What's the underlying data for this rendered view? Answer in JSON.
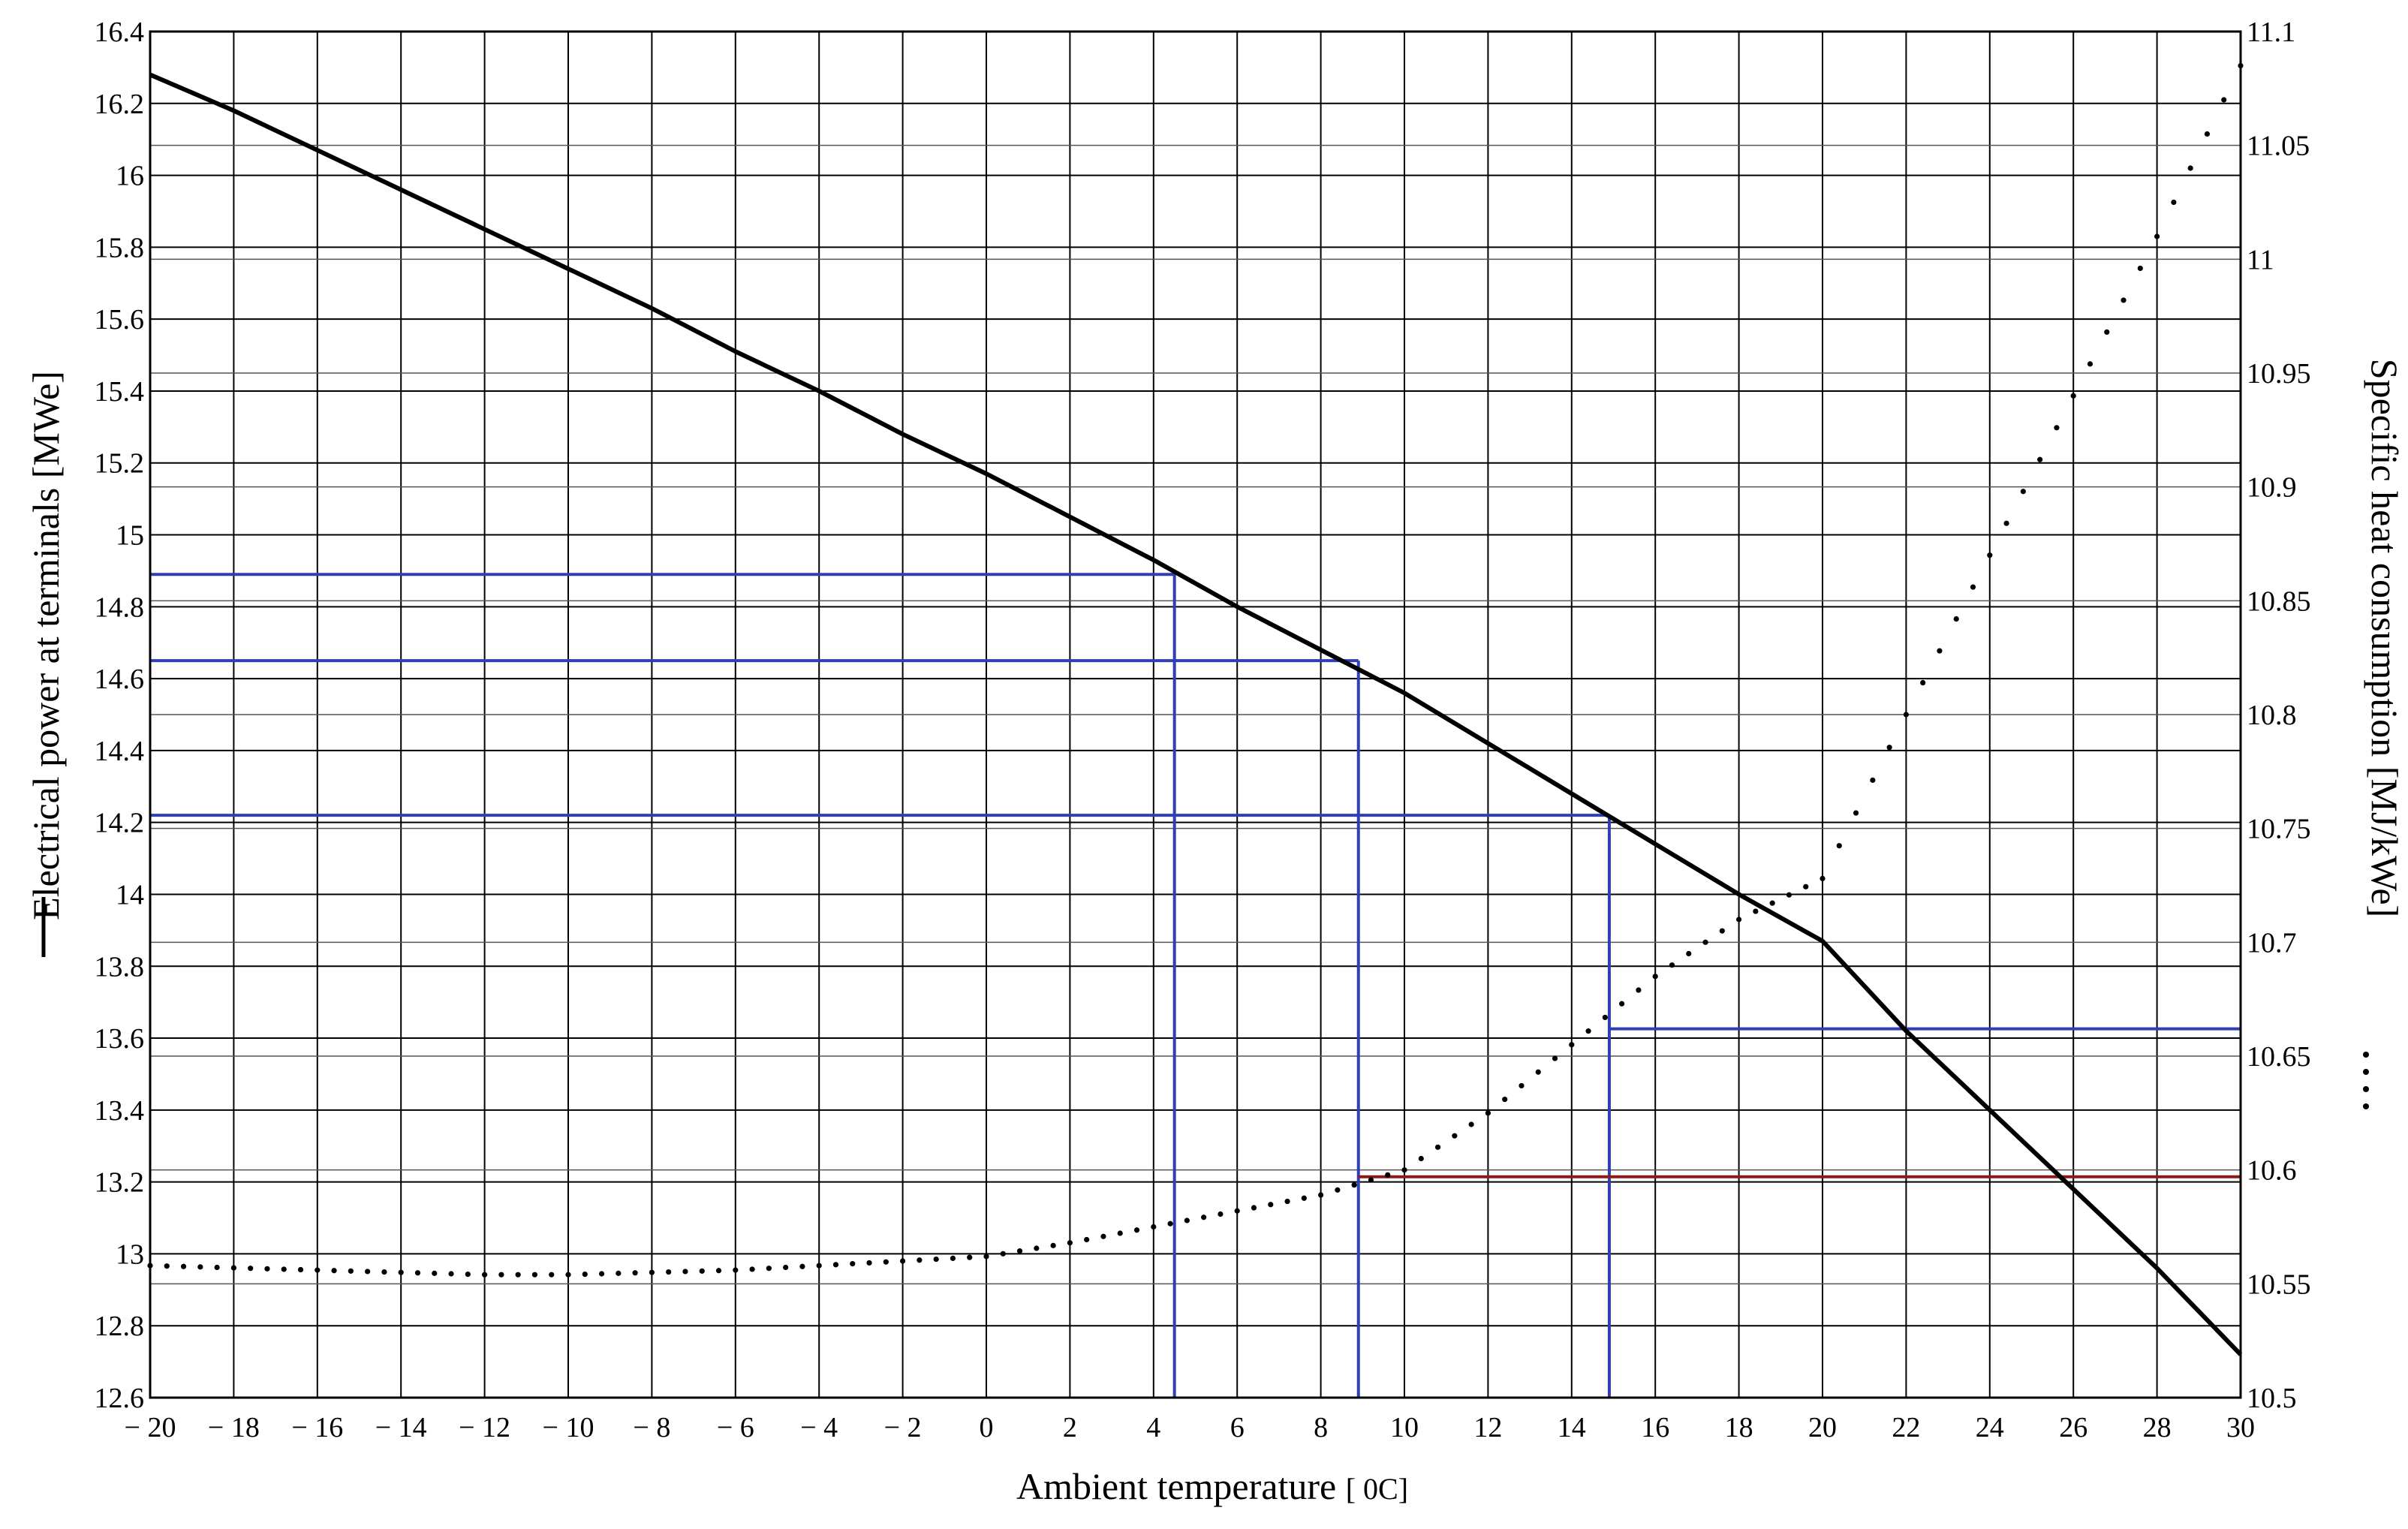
{
  "chart_data": {
    "type": "line",
    "xlabel": "Ambient temperature",
    "xlabel_unit": "[ 0C]",
    "ylabel_left": "Electrical power at terminals [MWe]",
    "ylabel_right": "Specific heat consumption [MJ/kWe]",
    "xlim": [
      -20,
      30
    ],
    "ylim_left": [
      12.6,
      16.4
    ],
    "ylim_right": [
      10.5,
      11.1
    ],
    "grid": true,
    "x_ticks": [
      -20,
      -18,
      -16,
      -14,
      -12,
      -10,
      -8,
      -6,
      -4,
      -2,
      0,
      2,
      4,
      6,
      8,
      10,
      12,
      14,
      16,
      18,
      20,
      22,
      24,
      26,
      28,
      30
    ],
    "x_tick_labels": [
      "− 20",
      "− 18",
      "− 16",
      "− 14",
      "− 12",
      "− 10",
      "− 8",
      "− 6",
      "− 4",
      "− 2",
      "0",
      "2",
      "4",
      "6",
      "8",
      "10",
      "12",
      "14",
      "16",
      "18",
      "20",
      "22",
      "24",
      "26",
      "28",
      "30"
    ],
    "y_left_ticks": [
      12.6,
      12.8,
      13,
      13.2,
      13.4,
      13.6,
      13.8,
      14,
      14.2,
      14.4,
      14.6,
      14.8,
      15,
      15.2,
      15.4,
      15.6,
      15.8,
      16,
      16.2,
      16.4
    ],
    "y_left_tick_labels": [
      "12.6",
      "12.8",
      "13",
      "13.2",
      "13.4",
      "13.6",
      "13.8",
      "14",
      "14.2",
      "14.4",
      "14.6",
      "14.8",
      "15",
      "15.2",
      "15.4",
      "15.6",
      "15.8",
      "16",
      "16.2",
      "16.4"
    ],
    "y_right_ticks": [
      10.5,
      10.55,
      10.6,
      10.65,
      10.7,
      10.75,
      10.8,
      10.85,
      10.9,
      10.95,
      11,
      11.05,
      11.1
    ],
    "y_right_tick_labels": [
      "10.5",
      "10.55",
      "10.6",
      "10.65",
      "10.7",
      "10.75",
      "10.8",
      "10.85",
      "10.9",
      "10.95",
      "11",
      "11.05",
      "11.1"
    ],
    "series": [
      {
        "axis": "left",
        "style": "solid",
        "color": "#000000",
        "x": [
          -20,
          -18,
          -16,
          -14,
          -12,
          -10,
          -8,
          -6,
          -4,
          -2,
          0,
          2,
          4,
          6,
          8,
          10,
          12,
          14,
          16,
          18,
          20,
          22,
          24,
          26,
          28,
          30
        ],
        "y": [
          16.28,
          16.18,
          16.07,
          15.96,
          15.85,
          15.74,
          15.63,
          15.51,
          15.4,
          15.28,
          15.17,
          15.05,
          14.93,
          14.8,
          14.68,
          14.56,
          14.42,
          14.28,
          14.14,
          14.0,
          13.87,
          13.62,
          13.4,
          13.18,
          12.96,
          12.72
        ]
      },
      {
        "axis": "right",
        "style": "dotted",
        "color": "#000000",
        "x": [
          -20,
          -18,
          -16,
          -14,
          -12,
          -10,
          -8,
          -6,
          -4,
          -2,
          0,
          2,
          4,
          6,
          8,
          10,
          12,
          14,
          16,
          18,
          20,
          22,
          24,
          26,
          28,
          30
        ],
        "y": [
          10.558,
          10.557,
          10.556,
          10.555,
          10.554,
          10.554,
          10.555,
          10.556,
          10.558,
          10.56,
          10.562,
          10.568,
          10.575,
          10.582,
          10.589,
          10.6,
          10.625,
          10.655,
          10.685,
          10.71,
          10.728,
          10.8,
          10.87,
          10.94,
          11.01,
          11.085
        ]
      }
    ],
    "annotations": [
      {
        "type": "hline",
        "axis": "left",
        "y": 14.89,
        "x0": -20,
        "x1": 4.5,
        "color": "#2f3fb3"
      },
      {
        "type": "vline",
        "x": 4.5,
        "y0": 12.6,
        "y1": 14.89,
        "color": "#2f3fb3"
      },
      {
        "type": "hline",
        "axis": "left",
        "y": 14.65,
        "x0": -20,
        "x1": 8.9,
        "color": "#2f3fb3"
      },
      {
        "type": "vline",
        "x": 8.9,
        "y0": 12.6,
        "y1": 14.65,
        "color": "#2f3fb3"
      },
      {
        "type": "hline",
        "axis": "left",
        "y": 14.22,
        "x0": -20,
        "x1": 14.9,
        "color": "#2f3fb3"
      },
      {
        "type": "vline",
        "x": 14.9,
        "y0": 12.6,
        "y1": 14.22,
        "color": "#2f3fb3"
      },
      {
        "type": "hline",
        "axis": "right",
        "y": 10.662,
        "x0": 14.9,
        "x1": 30,
        "color": "#2f3fb3"
      },
      {
        "type": "hline",
        "axis": "right",
        "y": 10.597,
        "x0": 8.9,
        "x1": 30,
        "color": "#8b1a1a"
      }
    ]
  }
}
